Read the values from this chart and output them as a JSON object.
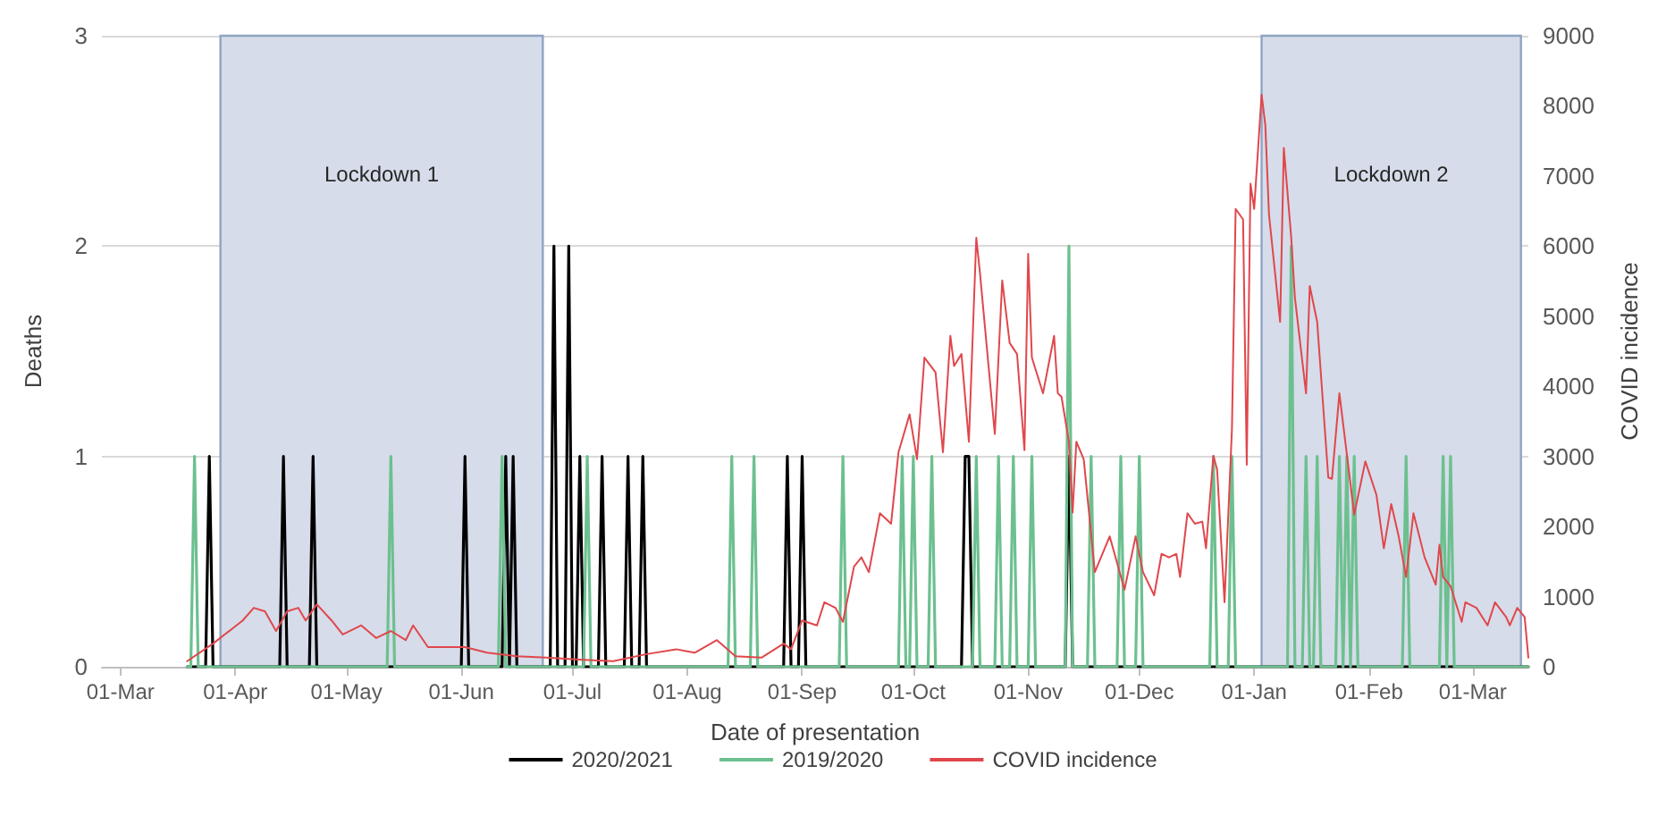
{
  "chart_data": {
    "type": "line",
    "xlabel": "Date of presentation",
    "ylabel": "Deaths",
    "y2label": "COVID incidence",
    "xlim": [
      "2020-02-25",
      "2021-03-16"
    ],
    "xticks": [
      {
        "value": "2020-03-01",
        "label": "01-Mar"
      },
      {
        "value": "2020-04-01",
        "label": "01-Apr"
      },
      {
        "value": "2020-05-01",
        "label": "01-May"
      },
      {
        "value": "2020-06-01",
        "label": "01-Jun"
      },
      {
        "value": "2020-07-01",
        "label": "01-Jul"
      },
      {
        "value": "2020-08-01",
        "label": "01-Aug"
      },
      {
        "value": "2020-09-01",
        "label": "01-Sep"
      },
      {
        "value": "2020-10-01",
        "label": "01-Oct"
      },
      {
        "value": "2020-11-01",
        "label": "01-Nov"
      },
      {
        "value": "2020-12-01",
        "label": "01-Dec"
      },
      {
        "value": "2021-01-01",
        "label": "01-Jan"
      },
      {
        "value": "2021-02-01",
        "label": "01-Feb"
      },
      {
        "value": "2021-03-01",
        "label": "01-Mar"
      }
    ],
    "ylim": [
      0,
      3
    ],
    "yticks": [
      0,
      1,
      2,
      3
    ],
    "y2lim": [
      0,
      9000
    ],
    "y2ticks": [
      0,
      1000,
      2000,
      3000,
      4000,
      5000,
      6000,
      7000,
      8000,
      9000
    ],
    "grid": "y",
    "legend": "bottom",
    "marker": "none",
    "line_style": "solid",
    "bands": [
      {
        "axis": "x",
        "from": "2020-03-28",
        "to": "2020-06-23",
        "label": "Lockdown 1",
        "color": "#d6dce9"
      },
      {
        "axis": "x",
        "from": "2021-01-03",
        "to": "2021-03-14",
        "label": "Lockdown 2",
        "color": "#d6dce9"
      }
    ],
    "series": [
      {
        "name": "2020/2021",
        "color": "#000000",
        "x": [
          "2020-03-19",
          "2020-03-24",
          "2020-03-25",
          "2020-03-26",
          "2020-04-13",
          "2020-04-14",
          "2020-04-15",
          "2020-04-21",
          "2020-04-22",
          "2020-04-23",
          "2020-06-01",
          "2020-06-02",
          "2020-06-03",
          "2020-06-12",
          "2020-06-13",
          "2020-06-14",
          "2020-06-15",
          "2020-06-16",
          "2020-06-25",
          "2020-06-26",
          "2020-06-27",
          "2020-06-29",
          "2020-06-30",
          "2020-07-01",
          "2020-07-02",
          "2020-07-03",
          "2020-07-04",
          "2020-07-08",
          "2020-07-09",
          "2020-07-10",
          "2020-07-15",
          "2020-07-16",
          "2020-07-17",
          "2020-07-19",
          "2020-07-20",
          "2020-07-21",
          "2020-08-27",
          "2020-08-28",
          "2020-08-29",
          "2020-08-31",
          "2020-09-01",
          "2020-09-02",
          "2020-10-14",
          "2020-10-15",
          "2020-10-16",
          "2020-10-17",
          "2020-11-11",
          "2020-11-12",
          "2020-11-13",
          "2021-03-16"
        ],
        "values": [
          0,
          0,
          1,
          0,
          0,
          1,
          0,
          0,
          1,
          0,
          0,
          1,
          0,
          0,
          1,
          0,
          1,
          0,
          0,
          2,
          0,
          0,
          2,
          0,
          0,
          1,
          0,
          0,
          1,
          0,
          0,
          1,
          0,
          0,
          1,
          0,
          0,
          1,
          0,
          0,
          1,
          0,
          0,
          1,
          1,
          0,
          0,
          1,
          0,
          0
        ]
      },
      {
        "name": "2019/2020",
        "color": "#6cc08f",
        "x": [
          "2020-03-19",
          "2020-03-20",
          "2020-03-21",
          "2020-03-22",
          "2020-05-12",
          "2020-05-13",
          "2020-05-14",
          "2020-06-11",
          "2020-06-12",
          "2020-06-13",
          "2020-07-04",
          "2020-07-05",
          "2020-07-06",
          "2020-08-12",
          "2020-08-13",
          "2020-08-14",
          "2020-08-18",
          "2020-08-19",
          "2020-08-20",
          "2020-09-11",
          "2020-09-12",
          "2020-09-13",
          "2020-09-27",
          "2020-09-28",
          "2020-09-29",
          "2020-09-30",
          "2020-10-01",
          "2020-10-02",
          "2020-10-05",
          "2020-10-06",
          "2020-10-07",
          "2020-10-17",
          "2020-10-18",
          "2020-10-19",
          "2020-10-23",
          "2020-10-24",
          "2020-10-25",
          "2020-10-27",
          "2020-10-28",
          "2020-10-29",
          "2020-11-01",
          "2020-11-02",
          "2020-11-03",
          "2020-11-11",
          "2020-11-12",
          "2020-11-13",
          "2020-11-17",
          "2020-11-18",
          "2020-11-19",
          "2020-11-25",
          "2020-11-26",
          "2020-11-27",
          "2020-11-30",
          "2020-12-01",
          "2020-12-02",
          "2020-12-20",
          "2020-12-21",
          "2020-12-22",
          "2020-12-25",
          "2020-12-26",
          "2020-12-27",
          "2021-01-10",
          "2021-01-11",
          "2021-01-12",
          "2021-01-14",
          "2021-01-15",
          "2021-01-16",
          "2021-01-17",
          "2021-01-18",
          "2021-01-19",
          "2021-01-23",
          "2021-01-24",
          "2021-01-25",
          "2021-01-26",
          "2021-01-27",
          "2021-01-28",
          "2021-01-29",
          "2021-02-10",
          "2021-02-11",
          "2021-02-12",
          "2021-02-20",
          "2021-02-21",
          "2021-02-22",
          "2021-02-23",
          "2021-02-24",
          "2021-03-16"
        ],
        "values": [
          0,
          0,
          1,
          0,
          0,
          1,
          0,
          0,
          1,
          0,
          0,
          1,
          0,
          0,
          1,
          0,
          0,
          1,
          0,
          0,
          1,
          0,
          0,
          1,
          0,
          0,
          1,
          0,
          0,
          1,
          0,
          0,
          1,
          0,
          0,
          1,
          0,
          0,
          1,
          0,
          0,
          1,
          0,
          0,
          2,
          0,
          0,
          1,
          0,
          0,
          1,
          0,
          0,
          1,
          0,
          0,
          1,
          0,
          0,
          1,
          0,
          0,
          2,
          0,
          0,
          1,
          0,
          0,
          1,
          0,
          0,
          1,
          0,
          1,
          0,
          1,
          0,
          0,
          1,
          0,
          0,
          1,
          0,
          1,
          0,
          0
        ]
      },
      {
        "name": "COVID incidence",
        "color": "#e0474c",
        "axis": "y2",
        "x": [
          "2020-03-19",
          "2020-03-26",
          "2020-04-03",
          "2020-04-06",
          "2020-04-09",
          "2020-04-12",
          "2020-04-15",
          "2020-04-18",
          "2020-04-20",
          "2020-04-23",
          "2020-04-27",
          "2020-04-30",
          "2020-05-05",
          "2020-05-09",
          "2020-05-13",
          "2020-05-17",
          "2020-05-19",
          "2020-05-23",
          "2020-06-02",
          "2020-06-08",
          "2020-06-16",
          "2020-06-24",
          "2020-07-04",
          "2020-07-12",
          "2020-07-21",
          "2020-07-29",
          "2020-08-03",
          "2020-08-09",
          "2020-08-14",
          "2020-08-21",
          "2020-08-27",
          "2020-08-29",
          "2020-09-01",
          "2020-09-05",
          "2020-09-07",
          "2020-09-10",
          "2020-09-12",
          "2020-09-15",
          "2020-09-17",
          "2020-09-19",
          "2020-09-22",
          "2020-09-25",
          "2020-09-27",
          "2020-09-30",
          "2020-10-02",
          "2020-10-04",
          "2020-10-07",
          "2020-10-09",
          "2020-10-11",
          "2020-10-12",
          "2020-10-14",
          "2020-10-16",
          "2020-10-18",
          "2020-10-19",
          "2020-10-23",
          "2020-10-25",
          "2020-10-27",
          "2020-10-29",
          "2020-10-31",
          "2020-11-01",
          "2020-11-02",
          "2020-11-05",
          "2020-11-08",
          "2020-11-09",
          "2020-11-10",
          "2020-11-12",
          "2020-11-13",
          "2020-11-14",
          "2020-11-16",
          "2020-11-19",
          "2020-11-23",
          "2020-11-27",
          "2020-11-30",
          "2020-12-02",
          "2020-12-05",
          "2020-12-07",
          "2020-12-09",
          "2020-12-11",
          "2020-12-12",
          "2020-12-14",
          "2020-12-16",
          "2020-12-18",
          "2020-12-19",
          "2020-12-21",
          "2020-12-22",
          "2020-12-24",
          "2020-12-26",
          "2020-12-27",
          "2020-12-29",
          "2020-12-30",
          "2020-12-31",
          "2021-01-01",
          "2021-01-03",
          "2021-01-04",
          "2021-01-05",
          "2021-01-08",
          "2021-01-09",
          "2021-01-11",
          "2021-01-12",
          "2021-01-15",
          "2021-01-16",
          "2021-01-18",
          "2021-01-21",
          "2021-01-22",
          "2021-01-24",
          "2021-01-28",
          "2021-01-31",
          "2021-02-03",
          "2021-02-05",
          "2021-02-07",
          "2021-02-09",
          "2021-02-11",
          "2021-02-13",
          "2021-02-16",
          "2021-02-19",
          "2021-02-20",
          "2021-02-21",
          "2021-02-23",
          "2021-02-26",
          "2021-02-27",
          "2021-03-02",
          "2021-03-05",
          "2021-03-07",
          "2021-03-10",
          "2021-03-11",
          "2021-03-13",
          "2021-03-15",
          "2021-03-16"
        ],
        "values": [
          80,
          330,
          660,
          840,
          790,
          510,
          790,
          840,
          660,
          890,
          660,
          460,
          590,
          410,
          510,
          380,
          590,
          280,
          280,
          200,
          150,
          130,
          100,
          80,
          180,
          250,
          200,
          380,
          150,
          130,
          330,
          250,
          660,
          590,
          920,
          840,
          640,
          1430,
          1560,
          1350,
          2190,
          2040,
          3060,
          3600,
          2960,
          4410,
          4200,
          3060,
          4720,
          4290,
          4460,
          3210,
          6120,
          5610,
          3320,
          5510,
          4620,
          4460,
          3090,
          5890,
          4410,
          3900,
          4720,
          3900,
          3850,
          3210,
          2200,
          3210,
          2960,
          1350,
          1860,
          1100,
          1860,
          1350,
          1020,
          1610,
          1560,
          1610,
          1280,
          2190,
          2040,
          2070,
          1690,
          3010,
          2810,
          920,
          3390,
          6530,
          6380,
          2880,
          6890,
          6530,
          8160,
          7730,
          6450,
          4920,
          7400,
          6120,
          5260,
          3900,
          5430,
          4920,
          2700,
          2680,
          3900,
          2170,
          2930,
          2450,
          1690,
          2320,
          1860,
          1280,
          2190,
          1560,
          1170,
          1740,
          1280,
          1150,
          640,
          920,
          840,
          590,
          920,
          710,
          590,
          840,
          710,
          130
        ]
      }
    ]
  }
}
